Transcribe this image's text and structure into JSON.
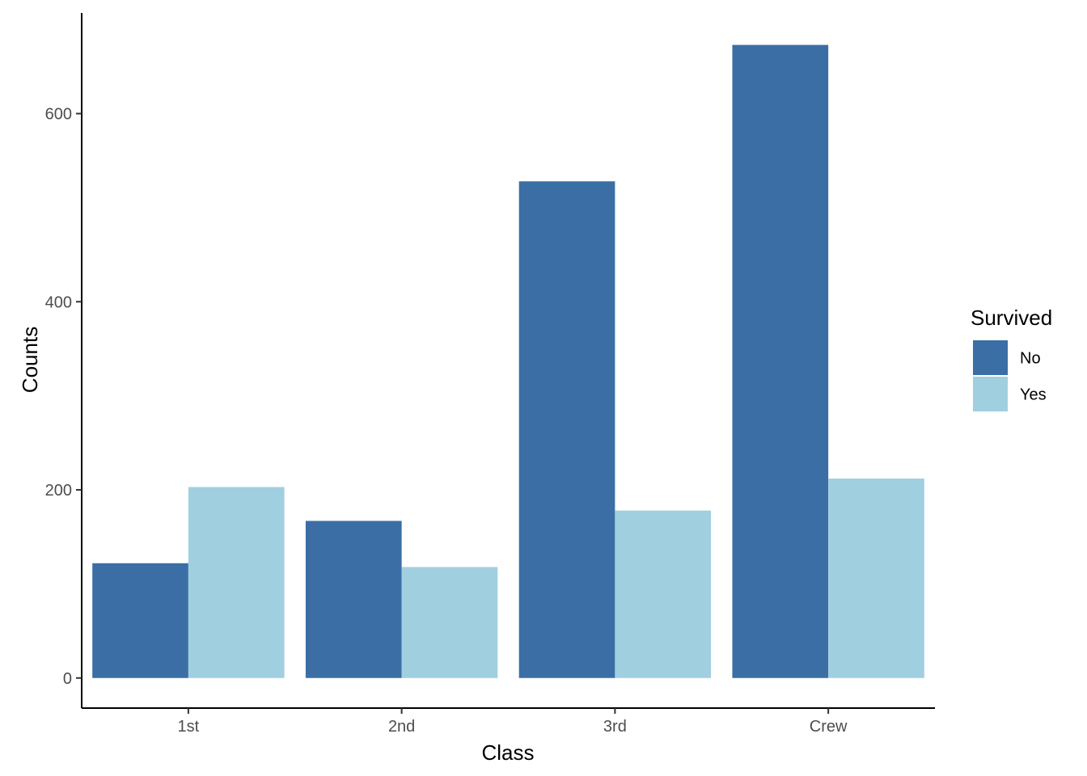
{
  "chart_data": {
    "type": "bar",
    "categories": [
      "1st",
      "2nd",
      "3rd",
      "Crew"
    ],
    "series": [
      {
        "name": "No",
        "values": [
          122,
          167,
          528,
          673
        ],
        "color": "#3a6ea5"
      },
      {
        "name": "Yes",
        "values": [
          203,
          118,
          178,
          212
        ],
        "color": "#a0cfe0"
      }
    ],
    "xlabel": "Class",
    "ylabel": "Counts",
    "legend_title": "Survived",
    "legend_position": "right",
    "ylim": [
      -32,
      707
    ],
    "yticks": [
      0,
      200,
      400,
      600
    ],
    "grid": false
  }
}
